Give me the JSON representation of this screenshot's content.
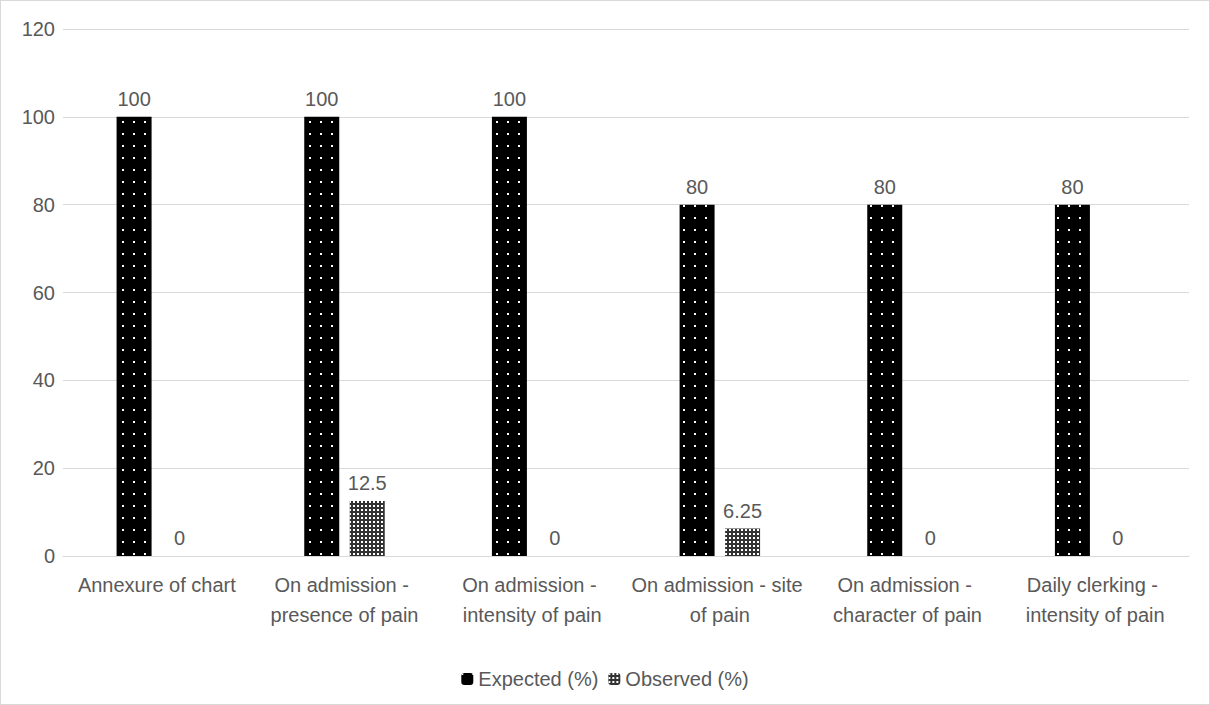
{
  "chart_data": {
    "type": "bar",
    "categories": [
      "Annexure of chart",
      "On admission - presence of pain",
      "On admission - intensity of pain",
      "On admission - site of pain",
      "On admission - character of pain",
      "Daily clerking - intensity of pain"
    ],
    "series": [
      {
        "name": "Expected (%)",
        "color": "#000000",
        "values": [
          100,
          100,
          100,
          80,
          80,
          80
        ]
      },
      {
        "name": "Observed (%)",
        "color": "#333333",
        "values": [
          0,
          12.5,
          0,
          6.25,
          0,
          0
        ]
      }
    ],
    "ylim": [
      0,
      120
    ],
    "yticks": [
      0,
      20,
      40,
      60,
      80,
      100,
      120
    ],
    "grid": true,
    "legend": "bottom",
    "data_labels": true
  }
}
